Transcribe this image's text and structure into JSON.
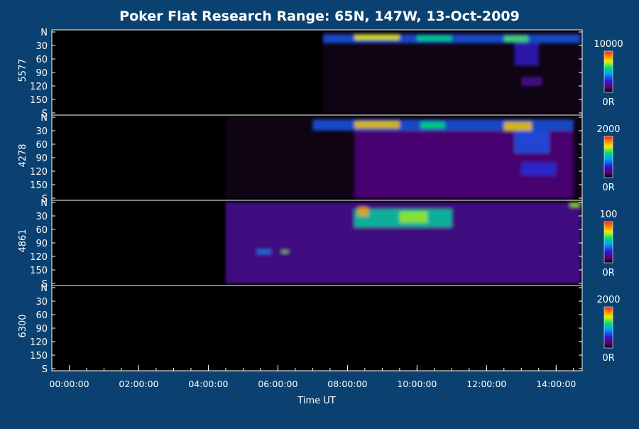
{
  "chart_data": {
    "type": "heatmap",
    "title": "Poker Flat Research Range: 65N, 147W, 13-Oct-2009",
    "xlabel": "Time UT",
    "x_ticks": [
      "00:00:00",
      "02:00:00",
      "04:00:00",
      "06:00:00",
      "08:00:00",
      "10:00:00",
      "12:00:00",
      "14:00:00"
    ],
    "x_range_hours": [
      -0.5,
      14.75
    ],
    "y_ticks": [
      "N",
      "30",
      "60",
      "90",
      "120",
      "150",
      "S"
    ],
    "y_tick_values": [
      0,
      30,
      60,
      90,
      120,
      150,
      180
    ],
    "panels": [
      {
        "label": "5577",
        "scale_max": "10000",
        "scale_min": "0R",
        "data_start_hour": 7.3,
        "activity": [
          {
            "t0": 7.3,
            "t1": 14.7,
            "z0": 5,
            "z1": 25,
            "v": 0.35
          },
          {
            "t0": 8.2,
            "t1": 9.5,
            "z0": 5,
            "z1": 18,
            "v": 0.75
          },
          {
            "t0": 10.0,
            "t1": 11.0,
            "z0": 8,
            "z1": 20,
            "v": 0.6
          },
          {
            "t0": 12.5,
            "t1": 13.2,
            "z0": 8,
            "z1": 22,
            "v": 0.65
          },
          {
            "t0": 12.8,
            "t1": 13.5,
            "z0": 25,
            "z1": 75,
            "v": 0.25
          },
          {
            "t0": 13.0,
            "t1": 13.6,
            "z0": 100,
            "z1": 120,
            "v": 0.18
          }
        ]
      },
      {
        "label": "4278",
        "scale_max": "2000",
        "scale_min": "0R",
        "data_start_hour": 4.5,
        "activity": [
          {
            "t0": 7.0,
            "t1": 14.5,
            "z0": 5,
            "z1": 30,
            "v": 0.35
          },
          {
            "t0": 8.2,
            "t1": 9.5,
            "z0": 8,
            "z1": 25,
            "v": 0.8
          },
          {
            "t0": 10.1,
            "t1": 10.8,
            "z0": 10,
            "z1": 25,
            "v": 0.6
          },
          {
            "t0": 12.5,
            "t1": 13.3,
            "z0": 10,
            "z1": 30,
            "v": 0.8
          },
          {
            "t0": 8.2,
            "t1": 14.5,
            "z0": 30,
            "z1": 180,
            "v": 0.15
          },
          {
            "t0": 12.8,
            "t1": 13.8,
            "z0": 30,
            "z1": 80,
            "v": 0.35
          },
          {
            "t0": 13.0,
            "t1": 14.0,
            "z0": 100,
            "z1": 130,
            "v": 0.3
          }
        ]
      },
      {
        "label": "4861",
        "scale_max": "100",
        "scale_min": "0R",
        "data_start_hour": 4.5,
        "activity": [
          {
            "t0": 4.5,
            "t1": 14.7,
            "z0": 0,
            "z1": 180,
            "v": 0.18
          },
          {
            "t0": 8.2,
            "t1": 11.0,
            "z0": 15,
            "z1": 55,
            "v": 0.55
          },
          {
            "t0": 8.3,
            "t1": 8.6,
            "z0": 10,
            "z1": 30,
            "v": 0.85
          },
          {
            "t0": 9.5,
            "t1": 10.3,
            "z0": 20,
            "z1": 45,
            "v": 0.7
          },
          {
            "t0": 5.4,
            "t1": 5.8,
            "z0": 105,
            "z1": 115,
            "v": 0.4
          },
          {
            "t0": 6.1,
            "t1": 6.3,
            "z0": 107,
            "z1": 112,
            "v": 0.7
          },
          {
            "t0": 14.4,
            "t1": 14.7,
            "z0": 0,
            "z1": 10,
            "v": 0.7
          }
        ]
      },
      {
        "label": "6300",
        "scale_max": "2000",
        "scale_min": "0R",
        "data_start_hour": null,
        "activity": []
      }
    ]
  }
}
